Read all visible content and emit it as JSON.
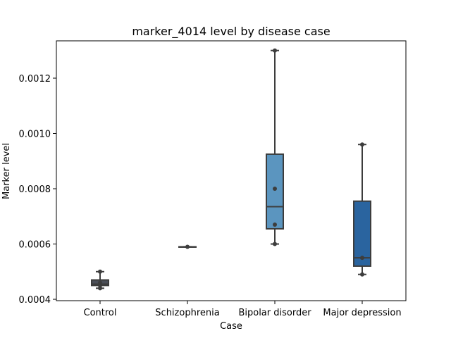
{
  "chart_data": {
    "type": "box",
    "title": "marker_4014 level by disease case",
    "xlabel": "Case",
    "ylabel": "Marker level",
    "categories": [
      "Control",
      "Schizophrenia",
      "Bipolar disorder",
      "Major depression"
    ],
    "yticks": [
      0.0004,
      0.0006,
      0.0008,
      0.001,
      0.0012
    ],
    "ytick_labels": [
      "0.0004",
      "0.0006",
      "0.0008",
      "0.0010",
      "0.0012"
    ],
    "ylim": [
      0.000395,
      0.001335
    ],
    "grid": false,
    "legend": "none",
    "boxes": [
      {
        "category": "Control",
        "color": "#4b4f58",
        "min": 0.00044,
        "q1": 0.00045,
        "median": 0.000455,
        "q3": 0.00047,
        "max": 0.0005,
        "points": [
          0.00044,
          0.00045,
          0.00046,
          0.0005
        ]
      },
      {
        "category": "Schizophrenia",
        "color": "#4b4f58",
        "min": 0.00059,
        "q1": 0.00059,
        "median": 0.00059,
        "q3": 0.00059,
        "max": 0.00059,
        "points": [
          0.00059
        ]
      },
      {
        "category": "Bipolar disorder",
        "color": "#5b95bf",
        "min": 0.0006,
        "q1": 0.000655,
        "median": 0.000735,
        "q3": 0.000925,
        "max": 0.0013,
        "points": [
          0.0006,
          0.00067,
          0.0008,
          0.0013
        ]
      },
      {
        "category": "Major depression",
        "color": "#2a649f",
        "min": 0.00049,
        "q1": 0.00052,
        "median": 0.00055,
        "q3": 0.000755,
        "max": 0.00096,
        "points": [
          0.00049,
          0.00055,
          0.00096
        ]
      }
    ]
  }
}
